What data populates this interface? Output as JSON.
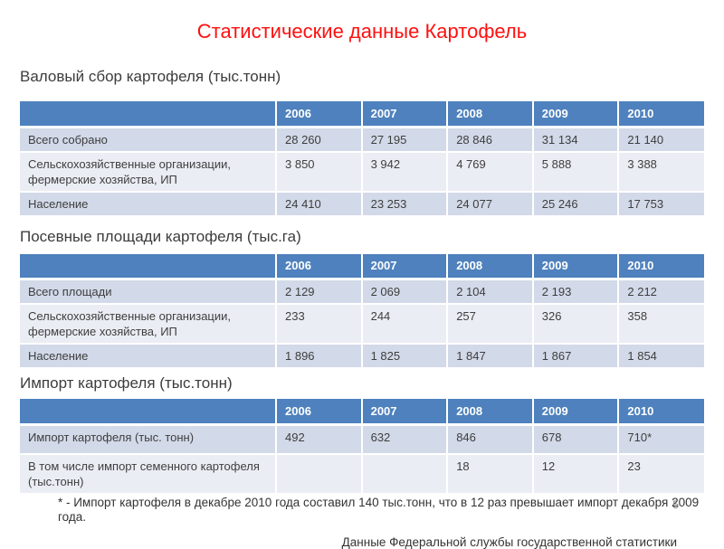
{
  "title": "Статистические данные Картофель",
  "sections": [
    {
      "heading": "Валовый сбор картофеля (тыс.тонн)",
      "table": {
        "columns": [
          "2006",
          "2007",
          "2008",
          "2009",
          "2010"
        ],
        "rows": [
          {
            "label": "Всего собрано",
            "values": [
              "28 260",
              "27 195",
              "28 846",
              "31 134",
              "21 140"
            ]
          },
          {
            "label": "Сельскохозяйственные организации, фермерские хозяйства, ИП",
            "values": [
              "3 850",
              "3 942",
              "4 769",
              "5 888",
              "3 388"
            ]
          },
          {
            "label": "Население",
            "values": [
              "24 410",
              "23 253",
              "24 077",
              "25 246",
              "17 753"
            ]
          }
        ]
      }
    },
    {
      "heading": "Посевные площади картофеля (тыс.га)",
      "table": {
        "columns": [
          "2006",
          "2007",
          "2008",
          "2009",
          "2010"
        ],
        "rows": [
          {
            "label": "Всего площади",
            "values": [
              "2 129",
              "2 069",
              "2 104",
              "2 193",
              "2 212"
            ]
          },
          {
            "label": "Сельскохозяйственные организации, фермерские хозяйства, ИП",
            "values": [
              "233",
              "244",
              "257",
              "326",
              "358"
            ]
          },
          {
            "label": "Население",
            "values": [
              "1 896",
              "1 825",
              "1 847",
              "1 867",
              "1 854"
            ]
          }
        ]
      }
    },
    {
      "heading": "Импорт картофеля (тыс.тонн)",
      "table": {
        "columns": [
          "2006",
          "2007",
          "2008",
          "2009",
          "2010"
        ],
        "rows": [
          {
            "label": "Импорт картофеля (тыс. тонн)",
            "values": [
              "492",
              "632",
              "846",
              "678",
              "710*"
            ]
          },
          {
            "label": "В том числе импорт семенного картофеля (тыс.тонн)",
            "values": [
              "",
              "",
              "18",
              "12",
              "23"
            ]
          }
        ]
      }
    }
  ],
  "footnote": "* - Импорт картофеля в декабре 2010 года составил 140 тыс.тонн, что в 12 раз превышает импорт декабря 2009 года.",
  "source": "Данные Федеральной службы государственной статистики",
  "page_number": "5",
  "colors": {
    "title_red": "#FE1010",
    "table_header_blue": "#4E81BD",
    "row_band_dark": "#D2D9E8",
    "row_band_light": "#EAEDF4"
  }
}
